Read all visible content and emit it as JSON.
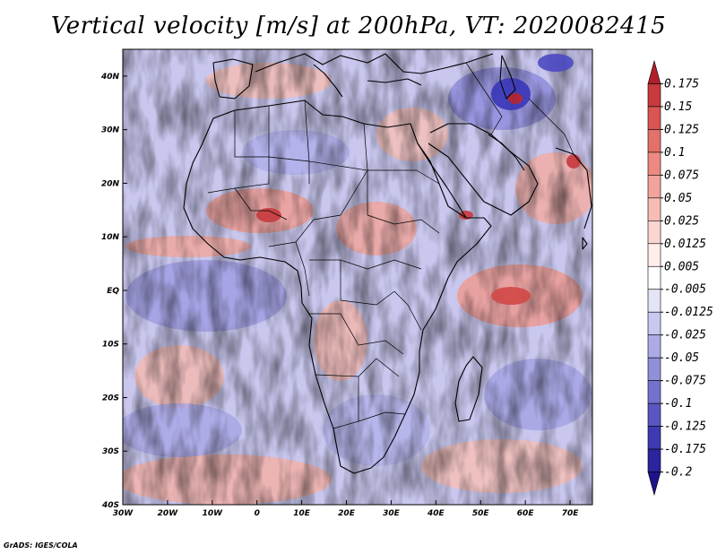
{
  "title": "Vertical velocity [m/s] at 200hPa, VT: 2020082415",
  "credit": "GrADS: IGES/COLA",
  "map": {
    "projection": "lat-lon",
    "lon_range": [
      -30,
      75
    ],
    "lat_range": [
      -40,
      45
    ],
    "field": "vertical velocity",
    "level": "200hPa",
    "valid_time": "2020082415",
    "x_tick_labels": [
      "30W",
      "20W",
      "10W",
      "0",
      "10E",
      "20E",
      "30E",
      "40E",
      "50E",
      "60E",
      "70E"
    ],
    "x_tick_lons": [
      -30,
      -20,
      -10,
      0,
      10,
      20,
      30,
      40,
      50,
      60,
      70
    ],
    "y_tick_labels": [
      "40S",
      "30S",
      "20S",
      "10S",
      "EQ",
      "10N",
      "20N",
      "30N",
      "40N"
    ],
    "y_tick_lats": [
      -40,
      -30,
      -20,
      -10,
      0,
      10,
      20,
      30,
      40
    ]
  },
  "colorbar": {
    "labels": [
      "0.175",
      "0.15",
      "0.125",
      "0.1",
      "0.075",
      "0.05",
      "0.025",
      "0.0125",
      "0.005",
      "-0.005",
      "-0.0125",
      "-0.025",
      "-0.05",
      "-0.075",
      "-0.1",
      "-0.125",
      "-0.175",
      "-0.2"
    ],
    "colors": [
      "#b11f2a",
      "#c73a3d",
      "#d85552",
      "#e4706a",
      "#ec8a82",
      "#f2a39b",
      "#f7bdb5",
      "#fbd6d0",
      "#ffeeea",
      "#ffffff",
      "#e4e4f7",
      "#c8c8f0",
      "#acabe6",
      "#908fdb",
      "#7472cf",
      "#5956c2",
      "#3e3ab2",
      "#2a249e",
      "#1c128a"
    ]
  },
  "colors": {
    "rising_red": "#d03a3a",
    "sinking_blue": "#4b4bd6",
    "coast": "#000000"
  }
}
